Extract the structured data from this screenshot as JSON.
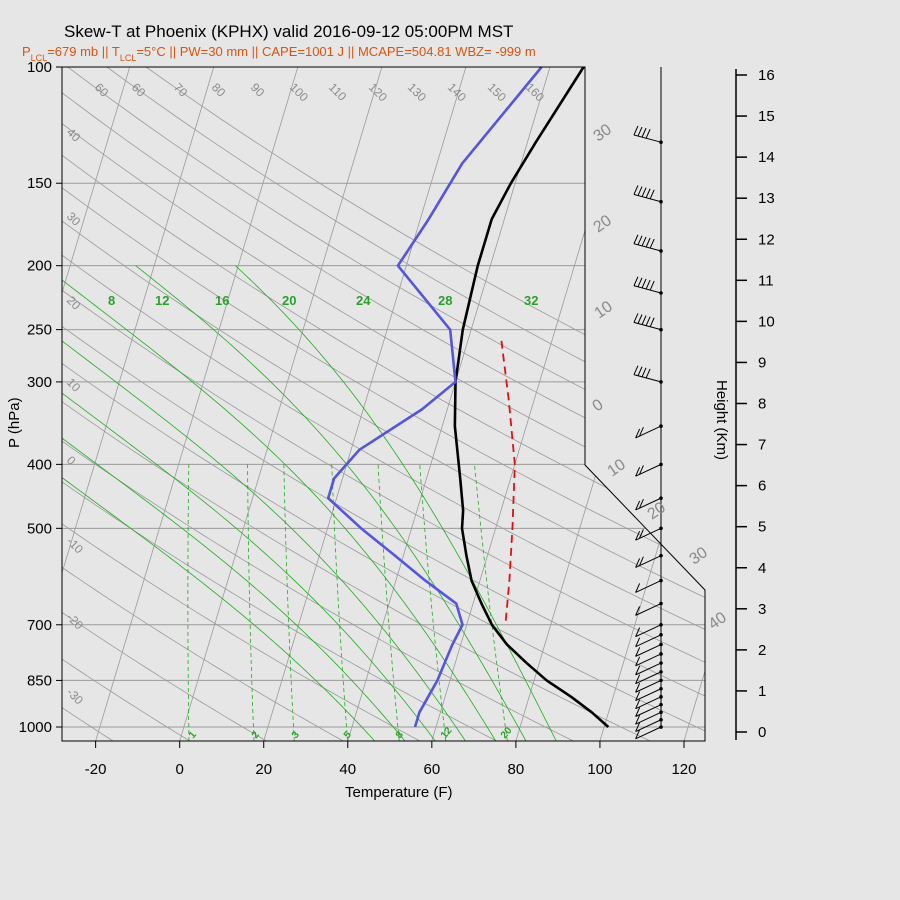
{
  "header": {
    "title": "Skew-T at Phoenix (KPHX) valid 2016-09-12 05:00PM MST",
    "subtitle": "P_LCL=679 mb || T_LCL=5°C || PW=30 mm || CAPE=1001 J || MCAPE=504.81 WBZ= -999 m"
  },
  "colors": {
    "temperature": "#000000",
    "dewpoint": "#5555dd",
    "parcel": "#dd1111",
    "mixing_ratio": "#22aa22",
    "background_lines": "#9a9a9a"
  },
  "chart_data": {
    "type": "line",
    "title": "Skew-T at Phoenix (KPHX) valid 2016-09-12 05:00PM MST",
    "xlabel": "Temperature (F)",
    "ylabel": "P (hPa)",
    "y2label": "Height (Km)",
    "xlim": [
      -28,
      125
    ],
    "ylim_hpa": [
      1050,
      100
    ],
    "y_scale": "log",
    "x_ticks": [
      -20,
      0,
      20,
      40,
      60,
      80,
      100,
      120
    ],
    "p_ticks": [
      100,
      150,
      200,
      250,
      300,
      400,
      500,
      700,
      850,
      1000
    ],
    "height_ticks_km": [
      0,
      1,
      2,
      3,
      4,
      5,
      6,
      7,
      8,
      9,
      10,
      11,
      12,
      13,
      14,
      15,
      16
    ],
    "skew_note": "isotherms skewed",
    "series": [
      {
        "name": "temperature",
        "points": [
          [
            1000,
            101
          ],
          [
            950,
            96
          ],
          [
            900,
            90
          ],
          [
            850,
            83
          ],
          [
            800,
            77
          ],
          [
            750,
            71
          ],
          [
            700,
            66
          ],
          [
            650,
            62
          ],
          [
            600,
            58
          ],
          [
            550,
            55
          ],
          [
            500,
            52
          ],
          [
            470,
            51
          ],
          [
            420,
            48
          ],
          [
            350,
            43
          ],
          [
            300,
            40
          ],
          [
            250,
            38
          ],
          [
            200,
            37
          ],
          [
            170,
            37
          ],
          [
            150,
            39
          ],
          [
            130,
            42
          ],
          [
            100,
            48
          ]
        ]
      },
      {
        "name": "dewpoint",
        "points": [
          [
            1000,
            55
          ],
          [
            950,
            55
          ],
          [
            850,
            57
          ],
          [
            750,
            58
          ],
          [
            700,
            59
          ],
          [
            650,
            56
          ],
          [
            600,
            47
          ],
          [
            550,
            38
          ],
          [
            500,
            28
          ],
          [
            450,
            18
          ],
          [
            420,
            18
          ],
          [
            380,
            22
          ],
          [
            330,
            34
          ],
          [
            300,
            40
          ],
          [
            250,
            35
          ],
          [
            200,
            18
          ],
          [
            170,
            22
          ],
          [
            140,
            26
          ],
          [
            100,
            38
          ]
        ]
      },
      {
        "name": "parcel",
        "points": [
          [
            690,
            69
          ],
          [
            600,
            67
          ],
          [
            500,
            64
          ],
          [
            400,
            60
          ],
          [
            320,
            54
          ],
          [
            260,
            48
          ]
        ]
      }
    ],
    "mixing_ratio_labels_top": [
      "8",
      "12",
      "16",
      "20",
      "24",
      "28",
      "32"
    ],
    "mixing_ratio_labels_bottom": [
      "1",
      "2",
      "3",
      "5",
      "8",
      "12",
      "20"
    ],
    "theta_labels": [
      "60",
      "60",
      "70",
      "80",
      "90",
      "100",
      "110",
      "120",
      "130",
      "140",
      "150",
      "160"
    ],
    "theta_labels_left": [
      "40",
      "30",
      "20",
      "10",
      "0",
      "-10",
      "-20",
      "-30"
    ],
    "isotherm_labels_right": [
      "30",
      "20",
      "10",
      "0",
      "10",
      "20",
      "30",
      "40"
    ],
    "wind_barbs": [
      {
        "p": 1000,
        "spd": 10
      },
      {
        "p": 975,
        "spd": 10
      },
      {
        "p": 950,
        "spd": 10
      },
      {
        "p": 925,
        "spd": 10
      },
      {
        "p": 900,
        "spd": 10
      },
      {
        "p": 875,
        "spd": 10
      },
      {
        "p": 850,
        "spd": 10
      },
      {
        "p": 825,
        "spd": 10
      },
      {
        "p": 800,
        "spd": 10
      },
      {
        "p": 775,
        "spd": 10
      },
      {
        "p": 750,
        "spd": 10
      },
      {
        "p": 725,
        "spd": 10
      },
      {
        "p": 700,
        "spd": 10
      },
      {
        "p": 650,
        "spd": 10
      },
      {
        "p": 600,
        "spd": 10
      },
      {
        "p": 550,
        "spd": 15
      },
      {
        "p": 500,
        "spd": 15
      },
      {
        "p": 450,
        "spd": 15
      },
      {
        "p": 400,
        "spd": 15
      },
      {
        "p": 350,
        "spd": 15
      },
      {
        "p": 300,
        "spd": 35
      },
      {
        "p": 250,
        "spd": 50
      },
      {
        "p": 220,
        "spd": 50
      },
      {
        "p": 190,
        "spd": 50
      },
      {
        "p": 160,
        "spd": 50
      },
      {
        "p": 130,
        "spd": 35
      }
    ]
  }
}
